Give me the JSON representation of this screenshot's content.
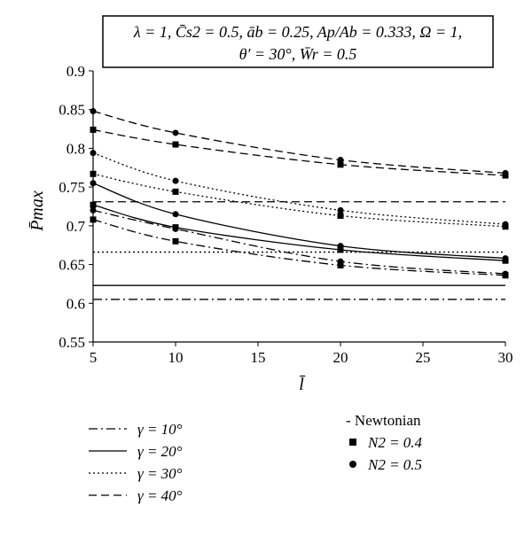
{
  "chart_data": {
    "type": "line",
    "title_lines": [
      "λ = 1, C̄s2 = 0.5, āb = 0.25, Ap/Ab = 0.333, Ω = 1,",
      "θ′ = 30°, W̄r = 0.5"
    ],
    "xlabel": "l̄",
    "ylabel": "P̄max",
    "xlim": [
      5,
      30
    ],
    "ylim": [
      0.55,
      0.9
    ],
    "x_ticks": [
      5,
      10,
      15,
      20,
      25,
      30
    ],
    "y_ticks": [
      0.55,
      0.6,
      0.65,
      0.7,
      0.75,
      0.8,
      0.85,
      0.9
    ],
    "x_tick_labels": [
      "5",
      "10",
      "15",
      "20",
      "25",
      "30"
    ],
    "y_tick_labels": [
      "0.55",
      "0.6",
      "0.65",
      "0.7",
      "0.75",
      "0.8",
      "0.85",
      "0.9"
    ],
    "grid": false,
    "x": [
      5,
      10,
      20,
      30
    ],
    "line_styles": {
      "10": "dash-dot",
      "20": "solid",
      "30": "dotted",
      "40": "dashed"
    },
    "series": [
      {
        "gamma": "10",
        "kind": "newtonian",
        "values": [
          0.605,
          0.605,
          0.605,
          0.605
        ]
      },
      {
        "gamma": "20",
        "kind": "newtonian",
        "values": [
          0.623,
          0.623,
          0.623,
          0.623
        ]
      },
      {
        "gamma": "30",
        "kind": "newtonian",
        "values": [
          0.666,
          0.666,
          0.666,
          0.666
        ]
      },
      {
        "gamma": "40",
        "kind": "newtonian",
        "values": [
          0.731,
          0.731,
          0.731,
          0.731
        ]
      },
      {
        "gamma": "10",
        "kind": "N2_0.4",
        "marker": "square",
        "values": [
          0.708,
          0.68,
          0.649,
          0.636
        ]
      },
      {
        "gamma": "10",
        "kind": "N2_0.5",
        "marker": "circle",
        "values": [
          0.72,
          0.696,
          0.654,
          0.638
        ]
      },
      {
        "gamma": "20",
        "kind": "N2_0.4",
        "marker": "square",
        "values": [
          0.727,
          0.698,
          0.669,
          0.655
        ]
      },
      {
        "gamma": "20",
        "kind": "N2_0.5",
        "marker": "circle",
        "values": [
          0.755,
          0.715,
          0.674,
          0.658
        ]
      },
      {
        "gamma": "30",
        "kind": "N2_0.4",
        "marker": "square",
        "values": [
          0.767,
          0.744,
          0.713,
          0.699
        ]
      },
      {
        "gamma": "30",
        "kind": "N2_0.5",
        "marker": "circle",
        "values": [
          0.794,
          0.758,
          0.72,
          0.702
        ]
      },
      {
        "gamma": "40",
        "kind": "N2_0.4",
        "marker": "square",
        "values": [
          0.824,
          0.805,
          0.779,
          0.765
        ]
      },
      {
        "gamma": "40",
        "kind": "N2_0.5",
        "marker": "circle",
        "values": [
          0.848,
          0.82,
          0.785,
          0.768
        ]
      }
    ],
    "legend_lines": [
      {
        "style": "dash-dot",
        "label": "γ = 10°"
      },
      {
        "style": "solid",
        "label": "γ = 20°"
      },
      {
        "style": "dotted",
        "label": "γ = 30°"
      },
      {
        "style": "dashed",
        "label": "γ = 40°"
      }
    ],
    "legend_markers": [
      {
        "marker": "none",
        "label": "- Newtonian"
      },
      {
        "marker": "square",
        "label": "N2 = 0.4"
      },
      {
        "marker": "circle",
        "label": "N2 = 0.5"
      }
    ],
    "colors": {
      "line": "#000000",
      "background": "#ffffff"
    }
  }
}
